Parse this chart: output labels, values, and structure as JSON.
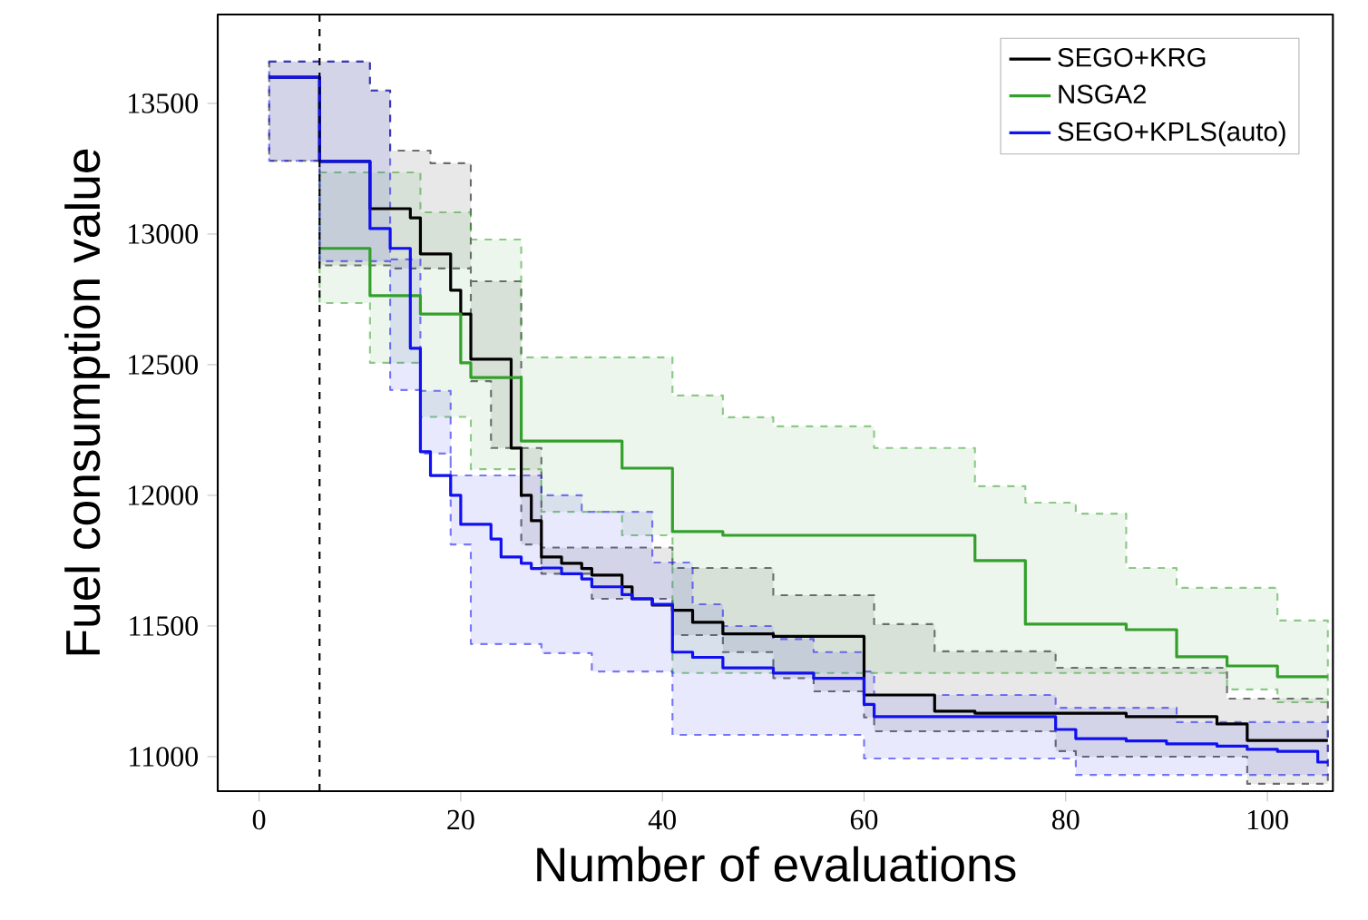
{
  "chart_data": {
    "type": "step",
    "xlabel": "Number of evaluations",
    "ylabel": "Fuel consumption value",
    "x": [
      1,
      6,
      11,
      13,
      15,
      16,
      17,
      19,
      20,
      21,
      23,
      24,
      25,
      26,
      27,
      28,
      30,
      32,
      33,
      36,
      37,
      39,
      41,
      43,
      46,
      51,
      55,
      60,
      61,
      67,
      71,
      76,
      79,
      81,
      86,
      90,
      91,
      95,
      96,
      98,
      101,
      106
    ],
    "series": [
      {
        "name": "SEGO+KRG",
        "color": "#000000",
        "values": [
          13600,
          13278,
          13097,
          13097,
          13062,
          12924,
          12924,
          12785,
          12694,
          12521,
          12521,
          12521,
          12181,
          12000,
          11903,
          11764,
          11740,
          11720,
          11695,
          11650,
          11604,
          11580,
          11560,
          11514,
          11470,
          11460,
          11460,
          11236,
          11236,
          11174,
          11166,
          11166,
          11166,
          11166,
          11153,
          11153,
          11153,
          11125,
          11125,
          11062,
          11062,
          11062
        ],
        "upper": [
          13660,
          13660,
          13549,
          13319,
          13319,
          13319,
          13271,
          13271,
          13271,
          12819,
          12819,
          12819,
          12819,
          12181,
          12181,
          11800,
          11800,
          11800,
          11800,
          11800,
          11800,
          11800,
          11722,
          11722,
          11722,
          11618,
          11618,
          11618,
          11507,
          11403,
          11403,
          11403,
          11340,
          11340,
          11340,
          11340,
          11340,
          11340,
          11222,
          11222,
          11222,
          11222
        ],
        "lower": [
          13280,
          12880,
          12880,
          12868,
          12868,
          12868,
          12868,
          12868,
          12868,
          12437,
          12181,
          12181,
          12181,
          11812,
          11812,
          11700,
          11700,
          11700,
          11604,
          11604,
          11604,
          11604,
          11465,
          11465,
          11400,
          11300,
          11250,
          11150,
          11097,
          11097,
          11097,
          11097,
          11021,
          11000,
          11000,
          11000,
          11000,
          11000,
          11000,
          10896,
          10896,
          10896
        ]
      },
      {
        "name": "NSGA2",
        "color": "#33a02c",
        "values": [
          null,
          12945,
          12764,
          12764,
          12764,
          12694,
          12694,
          12694,
          12507,
          12451,
          12451,
          12451,
          12451,
          12208,
          12208,
          12208,
          12208,
          12208,
          12208,
          12104,
          12104,
          12104,
          11861,
          11861,
          11847,
          11847,
          11847,
          11847,
          11847,
          11847,
          11750,
          11507,
          11507,
          11507,
          11486,
          11486,
          11382,
          11382,
          11347,
          11347,
          11306,
          11306
        ],
        "upper": [
          null,
          13236,
          13236,
          13236,
          13236,
          13083,
          13083,
          13083,
          13083,
          12979,
          12979,
          12979,
          12979,
          12528,
          12528,
          12528,
          12528,
          12528,
          12528,
          12528,
          12528,
          12528,
          12382,
          12382,
          12299,
          12264,
          12264,
          12264,
          12181,
          12181,
          12035,
          11972,
          11972,
          11930,
          11722,
          11722,
          11646,
          11646,
          11646,
          11646,
          11521,
          11521
        ],
        "lower": [
          null,
          12736,
          12507,
          12507,
          12507,
          12300,
          12300,
          12300,
          12300,
          12100,
          12100,
          12100,
          12100,
          12100,
          12100,
          11937,
          11937,
          11937,
          11937,
          11847,
          11847,
          11847,
          11320,
          11320,
          11320,
          11320,
          11320,
          11320,
          11320,
          11320,
          11320,
          11320,
          11320,
          11320,
          11320,
          11320,
          11320,
          11320,
          11257,
          11257,
          11208,
          11208
        ]
      },
      {
        "name": "SEGO+KPLS(auto)",
        "color": "#1010f0",
        "x": [
          1,
          6,
          11,
          13,
          15,
          16,
          17,
          19,
          20,
          21,
          23,
          24,
          25,
          26,
          27,
          28,
          30,
          32,
          33,
          36,
          37,
          39,
          41,
          43,
          46,
          51,
          55,
          60,
          61,
          67,
          71,
          76,
          79,
          81,
          86,
          90,
          91,
          95,
          96,
          98,
          101,
          105,
          106
        ],
        "values": [
          13600,
          13278,
          13021,
          12945,
          12563,
          12167,
          12076,
          12000,
          11889,
          11889,
          11833,
          11764,
          11764,
          11740,
          11720,
          11722,
          11700,
          11680,
          11650,
          11620,
          11604,
          11583,
          11400,
          11380,
          11340,
          11320,
          11300,
          11200,
          11153,
          11153,
          11153,
          11153,
          11104,
          11069,
          11060,
          11049,
          11049,
          11040,
          11040,
          11028,
          11020,
          10979,
          10979
        ],
        "upper": [
          13660,
          13660,
          13549,
          12903,
          12903,
          12400,
          12400,
          12076,
          12076,
          12076,
          12076,
          12076,
          12076,
          12076,
          12076,
          12000,
          12000,
          11937,
          11937,
          11937,
          11937,
          11743,
          11743,
          11583,
          11500,
          11450,
          11400,
          11326,
          11236,
          11236,
          11236,
          11236,
          11187,
          11187,
          11187,
          11187,
          11132,
          11132,
          11132,
          11132,
          11132,
          11132,
          11132
        ],
        "lower": [
          13280,
          12896,
          12896,
          12403,
          12403,
          12160,
          12160,
          11812,
          11812,
          11431,
          11431,
          11431,
          11431,
          11431,
          11431,
          11396,
          11396,
          11396,
          11326,
          11326,
          11326,
          11326,
          11083,
          11083,
          11083,
          11083,
          11083,
          10993,
          10993,
          10993,
          10993,
          10993,
          10993,
          10930,
          10930,
          10930,
          10930,
          10930,
          10930,
          10930,
          10930,
          10930,
          10930
        ]
      }
    ],
    "xlim": [
      -4.1,
      106.5
    ],
    "ylim": [
      10868,
      13840
    ],
    "xticks": [
      0,
      20,
      40,
      60,
      80,
      100
    ],
    "yticks": [
      11000,
      11500,
      12000,
      12500,
      13000,
      13500
    ],
    "ref_lines": [
      {
        "axis": "x",
        "value": 6,
        "color": "#000000",
        "line_style": "dashed"
      }
    ],
    "legend": "top right",
    "grid": false,
    "line_style": "solid",
    "marker": "none"
  }
}
